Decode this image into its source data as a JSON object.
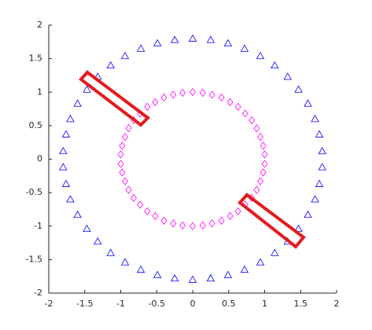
{
  "chart_data": {
    "type": "scatter",
    "xlim": [
      -2,
      2
    ],
    "ylim": [
      -2,
      2
    ],
    "xticks": [
      -2,
      -1.5,
      -1,
      -0.5,
      0,
      0.5,
      1,
      1.5,
      2
    ],
    "yticks": [
      -2,
      -1.5,
      -1,
      -0.5,
      0,
      0.5,
      1,
      1.5,
      2
    ],
    "series": [
      {
        "marker": "triangle",
        "color": "#0000ff",
        "x": [
          0,
          -0.25,
          -0.49,
          -0.72,
          -0.94,
          -1.14,
          -1.32,
          -1.47,
          -1.6,
          -1.7,
          -1.76,
          -1.8,
          -1.8,
          -1.76,
          -1.7,
          -1.6,
          -1.47,
          -1.32,
          -1.14,
          -0.94,
          -0.72,
          -0.49,
          -0.25,
          0,
          0.25,
          0.49,
          0.72,
          0.94,
          1.14,
          1.32,
          1.47,
          1.6,
          1.7,
          1.76,
          1.8,
          1.8,
          1.76,
          1.7,
          1.6,
          1.47,
          1.32,
          1.14,
          0.94,
          0.72,
          0.49,
          0.25
        ],
        "values": [
          1.8,
          1.78,
          1.73,
          1.65,
          1.54,
          1.4,
          1.23,
          1.04,
          0.83,
          0.6,
          0.37,
          0.12,
          -0.12,
          -0.37,
          -0.6,
          -0.83,
          -1.04,
          -1.23,
          -1.4,
          -1.54,
          -1.65,
          -1.73,
          -1.78,
          -1.8,
          -1.78,
          -1.73,
          -1.65,
          -1.54,
          -1.4,
          -1.23,
          -1.04,
          -0.83,
          -0.6,
          -0.37,
          -0.12,
          0.12,
          0.37,
          0.6,
          0.83,
          1.04,
          1.23,
          1.4,
          1.54,
          1.65,
          1.73,
          1.78
        ]
      },
      {
        "marker": "diamond",
        "color": "#ff00ff",
        "x": [
          0,
          -0.14,
          -0.27,
          -0.4,
          -0.52,
          -0.63,
          -0.73,
          -0.82,
          -0.89,
          -0.94,
          -0.98,
          -1,
          -1,
          -0.98,
          -0.94,
          -0.89,
          -0.82,
          -0.73,
          -0.63,
          -0.52,
          -0.4,
          -0.27,
          -0.14,
          0,
          0.14,
          0.27,
          0.4,
          0.52,
          0.63,
          0.73,
          0.82,
          0.89,
          0.94,
          0.98,
          1,
          1,
          0.98,
          0.94,
          0.89,
          0.82,
          0.73,
          0.63,
          0.52,
          0.4,
          0.27,
          0.14
        ],
        "values": [
          1,
          0.99,
          0.96,
          0.92,
          0.85,
          0.78,
          0.68,
          0.58,
          0.46,
          0.33,
          0.2,
          0.07,
          -0.07,
          -0.2,
          -0.33,
          -0.46,
          -0.58,
          -0.68,
          -0.78,
          -0.85,
          -0.92,
          -0.96,
          -0.99,
          -1,
          -0.99,
          -0.96,
          -0.92,
          -0.85,
          -0.78,
          -0.68,
          -0.58,
          -0.46,
          -0.33,
          -0.2,
          -0.07,
          0.07,
          0.2,
          0.33,
          0.46,
          0.58,
          0.68,
          0.78,
          0.85,
          0.92,
          0.96,
          0.99
        ]
      }
    ]
  }
}
